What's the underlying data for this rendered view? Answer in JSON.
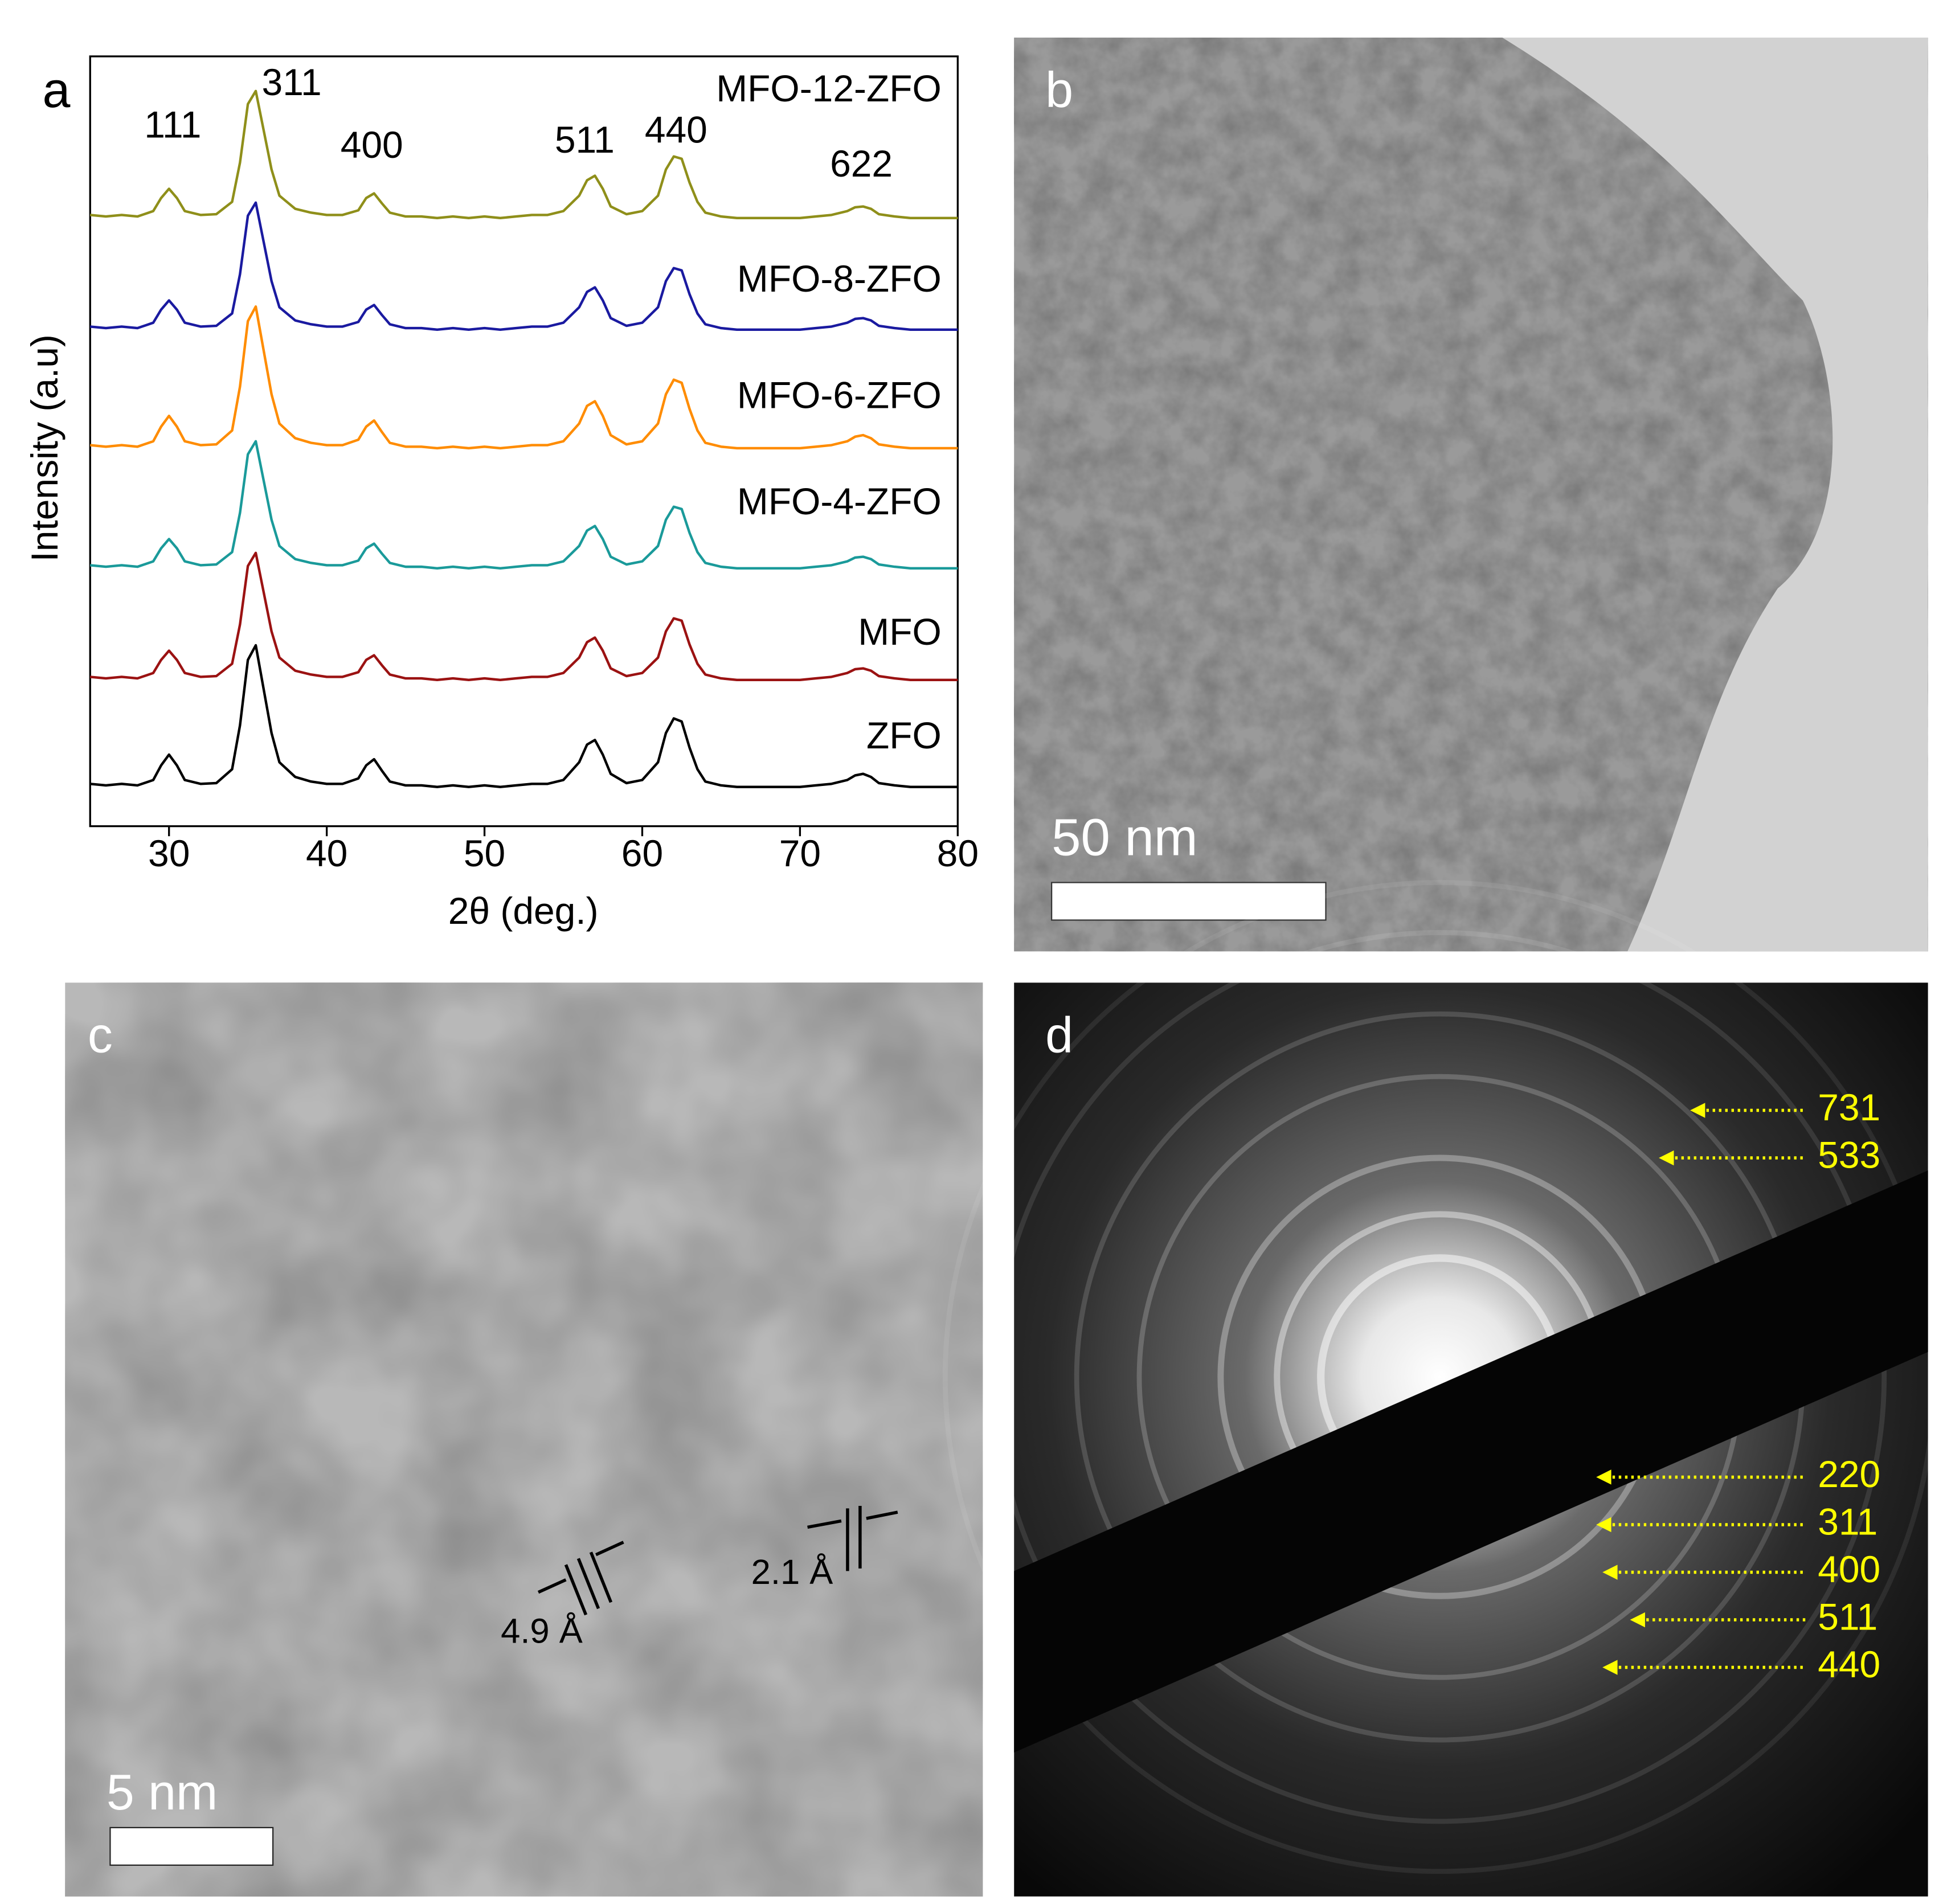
{
  "chart_data": {
    "type": "line",
    "panel_label": "a",
    "xlabel": "2θ (deg.)",
    "ylabel": "Intensity (a.u)",
    "annotations": [
      "111",
      "311",
      "400",
      "511",
      "440",
      "622"
    ],
    "x": [
      25,
      26,
      27,
      28,
      29,
      29.5,
      30,
      30.5,
      31,
      32,
      33,
      34,
      34.5,
      35,
      35.5,
      36,
      36.5,
      37,
      38,
      39,
      40,
      41,
      42,
      42.5,
      43,
      43.5,
      44,
      45,
      46,
      47,
      48,
      49,
      50,
      51,
      52,
      53,
      54,
      55,
      56,
      56.5,
      57,
      57.5,
      58,
      59,
      60,
      61,
      61.5,
      62,
      62.5,
      63,
      63.5,
      64,
      65,
      66,
      67,
      68,
      69,
      70,
      71,
      72,
      73,
      73.5,
      74,
      74.5,
      75,
      76,
      77,
      78,
      79,
      80
    ],
    "xlim": [
      25,
      80
    ],
    "xticks": [
      30,
      40,
      50,
      60,
      70,
      80
    ],
    "ylim": [
      0,
      100
    ],
    "series": [
      {
        "name": "ZFO",
        "color": "#000000",
        "values": [
          5.5,
          5.3,
          5.5,
          5.3,
          6.0,
          7.9,
          9.3,
          7.9,
          6.0,
          5.5,
          5.6,
          7.4,
          13.1,
          21.6,
          23.5,
          17.8,
          12.1,
          8.3,
          6.4,
          5.8,
          5.5,
          5.5,
          6.2,
          7.9,
          8.7,
          7.2,
          5.8,
          5.3,
          5.3,
          5.1,
          5.3,
          5.1,
          5.3,
          5.1,
          5.3,
          5.5,
          5.5,
          6.0,
          8.3,
          10.6,
          11.2,
          9.3,
          6.8,
          5.6,
          6.0,
          8.3,
          12.1,
          14.0,
          13.6,
          10.2,
          7.4,
          5.8,
          5.3,
          5.1,
          5.1,
          5.1,
          5.1,
          5.1,
          5.3,
          5.5,
          6.0,
          6.6,
          6.8,
          6.4,
          5.6,
          5.3,
          5.1,
          5.1,
          5.1,
          5.1
        ]
      },
      {
        "name": "MFO",
        "color": "#9b1212",
        "values": [
          19.4,
          19.2,
          19.4,
          19.2,
          19.9,
          21.6,
          22.8,
          21.6,
          19.9,
          19.4,
          19.5,
          21.1,
          26.2,
          33.8,
          35.5,
          30.4,
          25.3,
          21.9,
          20.2,
          19.7,
          19.4,
          19.4,
          20.0,
          21.6,
          22.2,
          20.9,
          19.7,
          19.2,
          19.2,
          19.0,
          19.2,
          19.0,
          19.2,
          19.0,
          19.2,
          19.4,
          19.4,
          19.9,
          21.9,
          23.9,
          24.5,
          22.8,
          20.5,
          19.5,
          19.9,
          21.9,
          25.3,
          27.0,
          26.7,
          23.6,
          21.1,
          19.7,
          19.2,
          19.0,
          19.0,
          19.0,
          19.0,
          19.0,
          19.2,
          19.4,
          19.9,
          20.4,
          20.5,
          20.2,
          19.5,
          19.2,
          19.0,
          19.0,
          19.0,
          19.0
        ]
      },
      {
        "name": "MFO-4-ZFO",
        "color": "#1a9a9a",
        "values": [
          33.9,
          33.7,
          33.9,
          33.7,
          34.4,
          36.1,
          37.3,
          36.1,
          34.4,
          33.9,
          34.0,
          35.6,
          40.7,
          48.3,
          50.0,
          44.9,
          39.8,
          36.4,
          34.7,
          34.2,
          33.9,
          33.9,
          34.5,
          36.1,
          36.7,
          35.4,
          34.2,
          33.7,
          33.7,
          33.5,
          33.7,
          33.5,
          33.7,
          33.5,
          33.7,
          33.9,
          33.9,
          34.4,
          36.4,
          38.4,
          39.0,
          37.3,
          35.0,
          34.0,
          34.4,
          36.4,
          39.8,
          41.5,
          41.2,
          38.1,
          35.6,
          34.2,
          33.7,
          33.5,
          33.5,
          33.5,
          33.5,
          33.5,
          33.7,
          33.9,
          34.4,
          34.9,
          35.0,
          34.7,
          34.0,
          33.7,
          33.5,
          33.5,
          33.5,
          33.5
        ]
      },
      {
        "name": "MFO-6-ZFO",
        "color": "#ff8c00",
        "values": [
          49.5,
          49.3,
          49.5,
          49.3,
          50.0,
          51.9,
          53.3,
          51.9,
          50.0,
          49.5,
          49.6,
          51.4,
          57.1,
          65.6,
          67.5,
          61.8,
          56.1,
          52.3,
          50.4,
          49.8,
          49.5,
          49.5,
          50.2,
          51.9,
          52.7,
          51.2,
          49.8,
          49.3,
          49.3,
          49.1,
          49.3,
          49.1,
          49.3,
          49.1,
          49.3,
          49.5,
          49.5,
          50.0,
          52.3,
          54.6,
          55.2,
          53.3,
          50.8,
          49.6,
          50.0,
          52.3,
          56.1,
          58.0,
          57.6,
          54.2,
          51.4,
          49.8,
          49.3,
          49.1,
          49.1,
          49.1,
          49.1,
          49.1,
          49.3,
          49.5,
          50.0,
          50.6,
          50.8,
          50.4,
          49.6,
          49.3,
          49.1,
          49.1,
          49.1,
          49.1
        ]
      },
      {
        "name": "MFO-8-ZFO",
        "color": "#1a1aa0",
        "values": [
          64.9,
          64.7,
          64.9,
          64.7,
          65.4,
          67.1,
          68.3,
          67.1,
          65.4,
          64.9,
          65.0,
          66.6,
          71.7,
          79.3,
          81.0,
          75.9,
          70.8,
          67.4,
          65.7,
          65.2,
          64.9,
          64.9,
          65.5,
          67.1,
          67.7,
          66.4,
          65.2,
          64.7,
          64.7,
          64.5,
          64.7,
          64.5,
          64.7,
          64.5,
          64.7,
          64.9,
          64.9,
          65.4,
          67.4,
          69.4,
          70.0,
          68.3,
          66.0,
          65.0,
          65.4,
          67.4,
          70.8,
          72.5,
          72.2,
          69.1,
          66.6,
          65.2,
          64.7,
          64.5,
          64.5,
          64.5,
          64.5,
          64.5,
          64.7,
          64.9,
          65.4,
          65.9,
          66.0,
          65.7,
          65.0,
          64.7,
          64.5,
          64.5,
          64.5,
          64.5
        ]
      },
      {
        "name": "MFO-12-ZFO",
        "color": "#8f8f1a",
        "values": [
          79.4,
          79.2,
          79.4,
          79.2,
          79.9,
          81.6,
          82.8,
          81.6,
          79.9,
          79.4,
          79.5,
          81.1,
          86.2,
          93.8,
          95.5,
          90.4,
          85.3,
          81.9,
          80.2,
          79.7,
          79.4,
          79.4,
          80.0,
          81.6,
          82.2,
          80.9,
          79.7,
          79.2,
          79.2,
          79.0,
          79.2,
          79.0,
          79.2,
          79.0,
          79.2,
          79.4,
          79.4,
          79.9,
          81.9,
          83.9,
          84.5,
          82.8,
          80.5,
          79.5,
          79.9,
          81.9,
          85.3,
          87.0,
          86.7,
          83.6,
          81.1,
          79.7,
          79.2,
          79.0,
          79.0,
          79.0,
          79.0,
          79.0,
          79.2,
          79.4,
          79.9,
          80.4,
          80.5,
          80.2,
          79.5,
          79.2,
          79.0,
          79.0,
          79.0,
          79.0
        ]
      }
    ]
  },
  "panels": [
    {
      "label": "b",
      "scale_bar": "50 nm"
    },
    {
      "label": "c",
      "scale_bar": "5 nm",
      "annotations": [
        "4.9 Å",
        "2.1 Å"
      ]
    },
    {
      "label": "d",
      "ring_labels": [
        "731",
        "533",
        "220",
        "311",
        "400",
        "511",
        "440"
      ]
    }
  ]
}
